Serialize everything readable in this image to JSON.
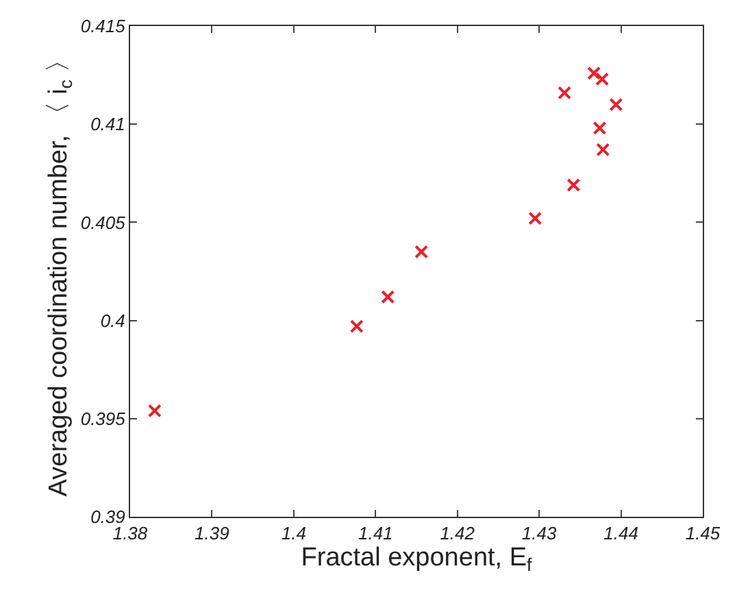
{
  "chart_data": {
    "type": "scatter",
    "xlabel": "Fractal exponent, E$_{f}$",
    "ylabel": "Averaged coordination number, 〈 i$_{c}$ 〉",
    "x": [
      1.383,
      1.4077,
      1.4115,
      1.4156,
      1.4295,
      1.4342,
      1.4331,
      1.4367,
      1.4377,
      1.4394,
      1.4374,
      1.4378
    ],
    "series": [
      {
        "color": "#e8202a",
        "values": [
          0.3954,
          0.3997,
          0.4012,
          0.4035,
          0.4052,
          0.4069,
          0.4116,
          0.4126,
          0.4123,
          0.411,
          0.4098,
          0.4087
        ]
      }
    ],
    "xlim": [
      1.38,
      1.45
    ],
    "xticks": [
      1.38,
      1.39,
      1.4,
      1.41,
      1.42,
      1.43,
      1.44,
      1.45
    ],
    "ylim": [
      0.39,
      0.415
    ],
    "yticks": [
      0.39,
      0.395,
      0.4,
      0.405,
      0.41,
      0.415
    ],
    "marker": "cross"
  }
}
